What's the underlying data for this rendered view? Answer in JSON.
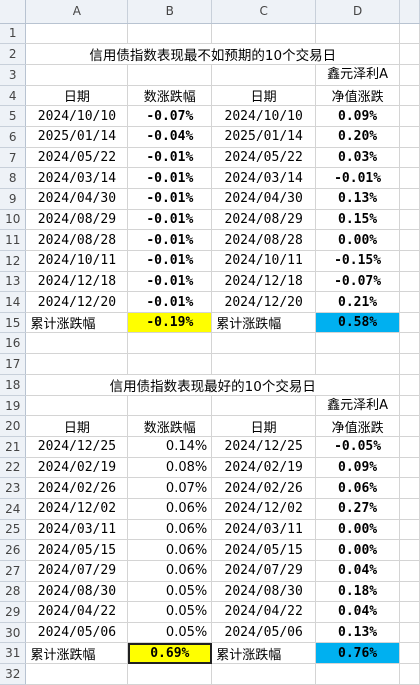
{
  "columns": [
    "A",
    "B",
    "C",
    "D"
  ],
  "rownums": [
    "1",
    "2",
    "3",
    "4",
    "5",
    "6",
    "7",
    "8",
    "9",
    "10",
    "11",
    "12",
    "13",
    "14",
    "15",
    "16",
    "17",
    "18",
    "19",
    "20",
    "21",
    "22",
    "23",
    "24",
    "25",
    "26",
    "27",
    "28",
    "29",
    "30",
    "31",
    "32"
  ],
  "section1": {
    "title": "信用债指数表现最不如预期的10个交易日",
    "hdr_date": "日期",
    "hdr_change": "数涨跌幅",
    "hdr_fund_line1": "鑫元泽利A",
    "hdr_fund_line2": "净值涨跌",
    "rows": [
      {
        "date": "2024/10/10",
        "chg": "-0.07%",
        "fdate": "2024/10/10",
        "nav": "0.09%"
      },
      {
        "date": "2025/01/14",
        "chg": "-0.04%",
        "fdate": "2025/01/14",
        "nav": "0.20%"
      },
      {
        "date": "2024/05/22",
        "chg": "-0.01%",
        "fdate": "2024/05/22",
        "nav": "0.03%"
      },
      {
        "date": "2024/03/14",
        "chg": "-0.01%",
        "fdate": "2024/03/14",
        "nav": "-0.01%"
      },
      {
        "date": "2024/04/30",
        "chg": "-0.01%",
        "fdate": "2024/04/30",
        "nav": "0.13%"
      },
      {
        "date": "2024/08/29",
        "chg": "-0.01%",
        "fdate": "2024/08/29",
        "nav": "0.15%"
      },
      {
        "date": "2024/08/28",
        "chg": "-0.01%",
        "fdate": "2024/08/28",
        "nav": "0.00%"
      },
      {
        "date": "2024/10/11",
        "chg": "-0.01%",
        "fdate": "2024/10/11",
        "nav": "-0.15%"
      },
      {
        "date": "2024/12/18",
        "chg": "-0.01%",
        "fdate": "2024/12/18",
        "nav": "-0.07%"
      },
      {
        "date": "2024/12/20",
        "chg": "-0.01%",
        "fdate": "2024/12/20",
        "nav": "0.21%"
      }
    ],
    "total_label": "累计涨跌幅",
    "total_chg": "-0.19%",
    "total_label2": "累计涨跌幅",
    "total_nav": "0.58%"
  },
  "section2": {
    "title": "信用债指数表现最好的10个交易日",
    "hdr_date": "日期",
    "hdr_change": "数涨跌幅",
    "hdr_fund_line1": "鑫元泽利A",
    "hdr_fund_line2": "净值涨跌",
    "rows": [
      {
        "date": "2024/12/25",
        "chg": "0.14%",
        "fdate": "2024/12/25",
        "nav": "-0.05%"
      },
      {
        "date": "2024/02/19",
        "chg": "0.08%",
        "fdate": "2024/02/19",
        "nav": "0.09%"
      },
      {
        "date": "2024/02/26",
        "chg": "0.07%",
        "fdate": "2024/02/26",
        "nav": "0.06%"
      },
      {
        "date": "2024/12/02",
        "chg": "0.06%",
        "fdate": "2024/12/02",
        "nav": "0.27%"
      },
      {
        "date": "2024/03/11",
        "chg": "0.06%",
        "fdate": "2024/03/11",
        "nav": "0.00%"
      },
      {
        "date": "2024/05/15",
        "chg": "0.06%",
        "fdate": "2024/05/15",
        "nav": "0.00%"
      },
      {
        "date": "2024/07/29",
        "chg": "0.06%",
        "fdate": "2024/07/29",
        "nav": "0.04%"
      },
      {
        "date": "2024/08/30",
        "chg": "0.05%",
        "fdate": "2024/08/30",
        "nav": "0.18%"
      },
      {
        "date": "2024/04/22",
        "chg": "0.05%",
        "fdate": "2024/04/22",
        "nav": "0.04%"
      },
      {
        "date": "2024/05/06",
        "chg": "0.05%",
        "fdate": "2024/05/06",
        "nav": "0.13%"
      }
    ],
    "total_label": "累计涨跌幅",
    "total_chg": "0.69%",
    "total_label2": "累计涨跌幅",
    "total_nav": "0.76%"
  },
  "colors": {
    "negative": "#00a651",
    "positive": "#e00000",
    "yellow_fill": "#ffff00",
    "blue_fill": "#00b0f0"
  }
}
